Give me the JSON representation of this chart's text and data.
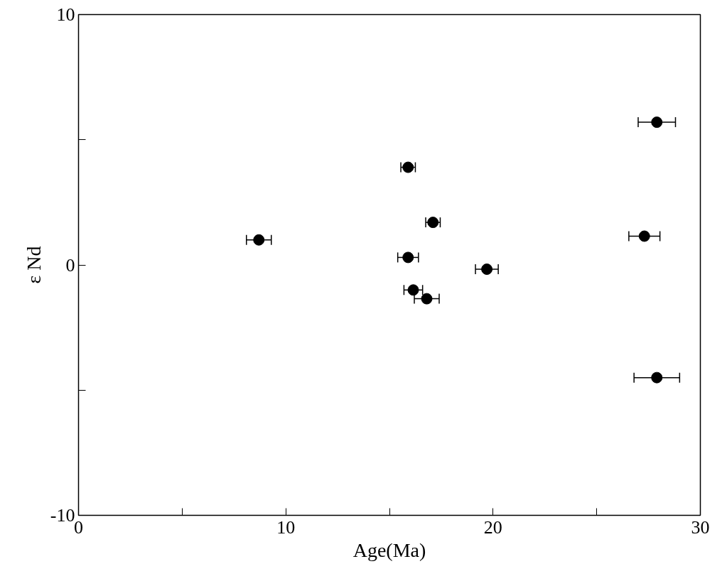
{
  "chart_data": {
    "type": "scatter",
    "xlabel": "Age(Ma)",
    "ylabel": "ε Nd",
    "x": [
      8.7,
      15.9,
      17.1,
      15.9,
      16.15,
      16.8,
      19.7,
      27.9,
      27.3,
      27.9
    ],
    "values": [
      1.0,
      3.9,
      1.7,
      0.3,
      -1.0,
      -1.35,
      -0.17,
      5.7,
      1.15,
      -4.5
    ],
    "xerrors": [
      0.6,
      0.35,
      0.35,
      0.5,
      0.45,
      0.6,
      0.55,
      0.9,
      0.75,
      1.1
    ],
    "color": "#000000",
    "marker": "circle",
    "xlim": [
      0,
      30
    ],
    "ylim": [
      -10,
      10
    ],
    "xticks": [
      0,
      {
        "value": 5,
        "label": null
      },
      10,
      {
        "value": 15,
        "label": null
      },
      20,
      {
        "value": 25,
        "label": null
      },
      30
    ],
    "yticks": [
      -10,
      {
        "value": -5,
        "label": null
      },
      0,
      {
        "value": 5,
        "label": null
      },
      10
    ],
    "grid": false
  }
}
